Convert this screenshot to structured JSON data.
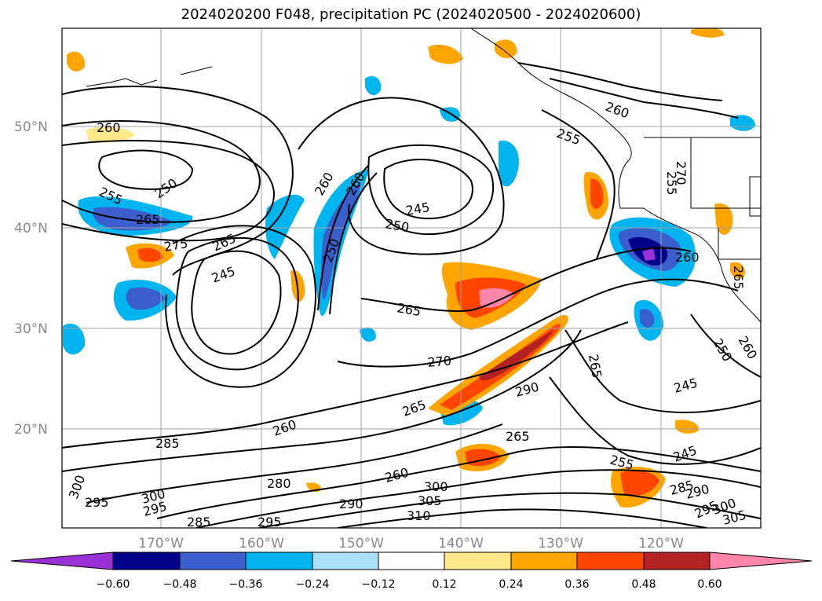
{
  "title": "2024020200 F048, precipitation PC (2024020500 - 2024020600)",
  "latitude_labels": [
    "50°N",
    "40°N",
    "30°N",
    "20°N"
  ],
  "longitude_labels": [
    "170°W",
    "160°W",
    "150°W",
    "140°W",
    "130°W",
    "120°W"
  ],
  "contour_labels": [
    "260",
    "255",
    "250",
    "265",
    "275",
    "245",
    "265",
    "250",
    "260",
    "245",
    "250",
    "265",
    "270",
    "290",
    "265",
    "285",
    "280",
    "300",
    "295",
    "300",
    "295",
    "285",
    "295",
    "260",
    "290",
    "300",
    "305",
    "310",
    "260",
    "255",
    "260",
    "265",
    "245",
    "245",
    "255",
    "285",
    "290",
    "295",
    "300",
    "305",
    "250",
    "260",
    "265",
    "260",
    "260",
    "270",
    "255",
    "265"
  ],
  "colorbar": {
    "ticks": [
      "−0.60",
      "−0.48",
      "−0.36",
      "−0.24",
      "−0.12",
      "0.12",
      "0.24",
      "0.36",
      "0.48",
      "0.60"
    ],
    "colors": [
      "#9b30d6",
      "#00008b",
      "#3a5fcd",
      "#00b4f0",
      "#abe0f8",
      "#ffffff",
      "#ffe98a",
      "#ffa500",
      "#ff4500",
      "#b22222",
      "#ff85aa"
    ]
  },
  "colors": {
    "contour": "#000000",
    "coastline": "#000000",
    "grid": "#a0a0a0",
    "axis_label": "#888888"
  }
}
